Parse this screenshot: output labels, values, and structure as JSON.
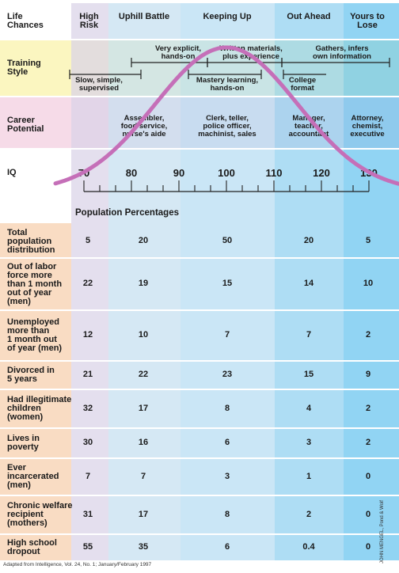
{
  "columns": [
    {
      "header": "High\nRisk"
    },
    {
      "header": "Uphill\nBattle"
    },
    {
      "header": "Keeping\nUp"
    },
    {
      "header": "Out\nAhead"
    },
    {
      "header": "Yours\nto Lose"
    }
  ],
  "corner_label": "Life\nChances",
  "training": {
    "label": "Training\nStyle",
    "notes": [
      {
        "text": "Very explicit,\nhands-on"
      },
      {
        "text": "Written materials,\nplus experience"
      },
      {
        "text": "Gathers, infers\nown information"
      },
      {
        "text": "Slow, simple,\nsupervised"
      },
      {
        "text": "Mastery learning,\nhands-on"
      },
      {
        "text": "College\nformat"
      }
    ]
  },
  "career": {
    "label": "Career\nPotential",
    "items": [
      "",
      "Assembler,\nfood service,\nnurse's aide",
      "Clerk, teller,\npolice officer,\nmachinist, sales",
      "Manager,\nteacher,\naccountant",
      "Attorney,\nchemist,\nexecutive"
    ]
  },
  "iq": {
    "label": "IQ",
    "ticks": [
      "70",
      "80",
      "90",
      "100",
      "110",
      "120",
      "130"
    ]
  },
  "population_title": "Population Percentages",
  "rows": [
    {
      "label": "Total\npopulation\ndistribution",
      "values": [
        "5",
        "20",
        "50",
        "20",
        "5"
      ]
    },
    {
      "label": "Out of labor\nforce more\nthan 1 month\nout of year\n(men)",
      "values": [
        "22",
        "19",
        "15",
        "14",
        "10"
      ]
    },
    {
      "label": "Unemployed\nmore than\n1 month out\nof year (men)",
      "values": [
        "12",
        "10",
        "7",
        "7",
        "2"
      ]
    },
    {
      "label": "Divorced in\n5 years",
      "values": [
        "21",
        "22",
        "23",
        "15",
        "9"
      ]
    },
    {
      "label": "Had illegitimate\nchildren\n(women)",
      "values": [
        "32",
        "17",
        "8",
        "4",
        "2"
      ]
    },
    {
      "label": "Lives in\npoverty",
      "values": [
        "30",
        "16",
        "6",
        "3",
        "2"
      ]
    },
    {
      "label": "Ever\nincarcerated\n(men)",
      "values": [
        "7",
        "7",
        "3",
        "1",
        "0"
      ]
    },
    {
      "label": "Chronic welfare\nrecipient\n(mothers)",
      "values": [
        "31",
        "17",
        "8",
        "2",
        "0"
      ]
    },
    {
      "label": "High school\ndropout",
      "values": [
        "55",
        "35",
        "6",
        "0.4",
        "0"
      ]
    }
  ],
  "footnote": "Adapted from Intelligence, Vol. 24, No. 1; January/February 1997",
  "credit": "JOHN MENGEL, Pond & Wolf",
  "colors": {
    "curve": "#c56fb8",
    "col_bg": [
      "#d9d3e8",
      "#c5dff0",
      "#b5dcf2",
      "#8fd0f0",
      "#66c4ee"
    ],
    "row_bg_training": "#fbf6c0",
    "row_bg_career": "#f6dbe8",
    "row_bg_data": "#f9dcc3"
  }
}
